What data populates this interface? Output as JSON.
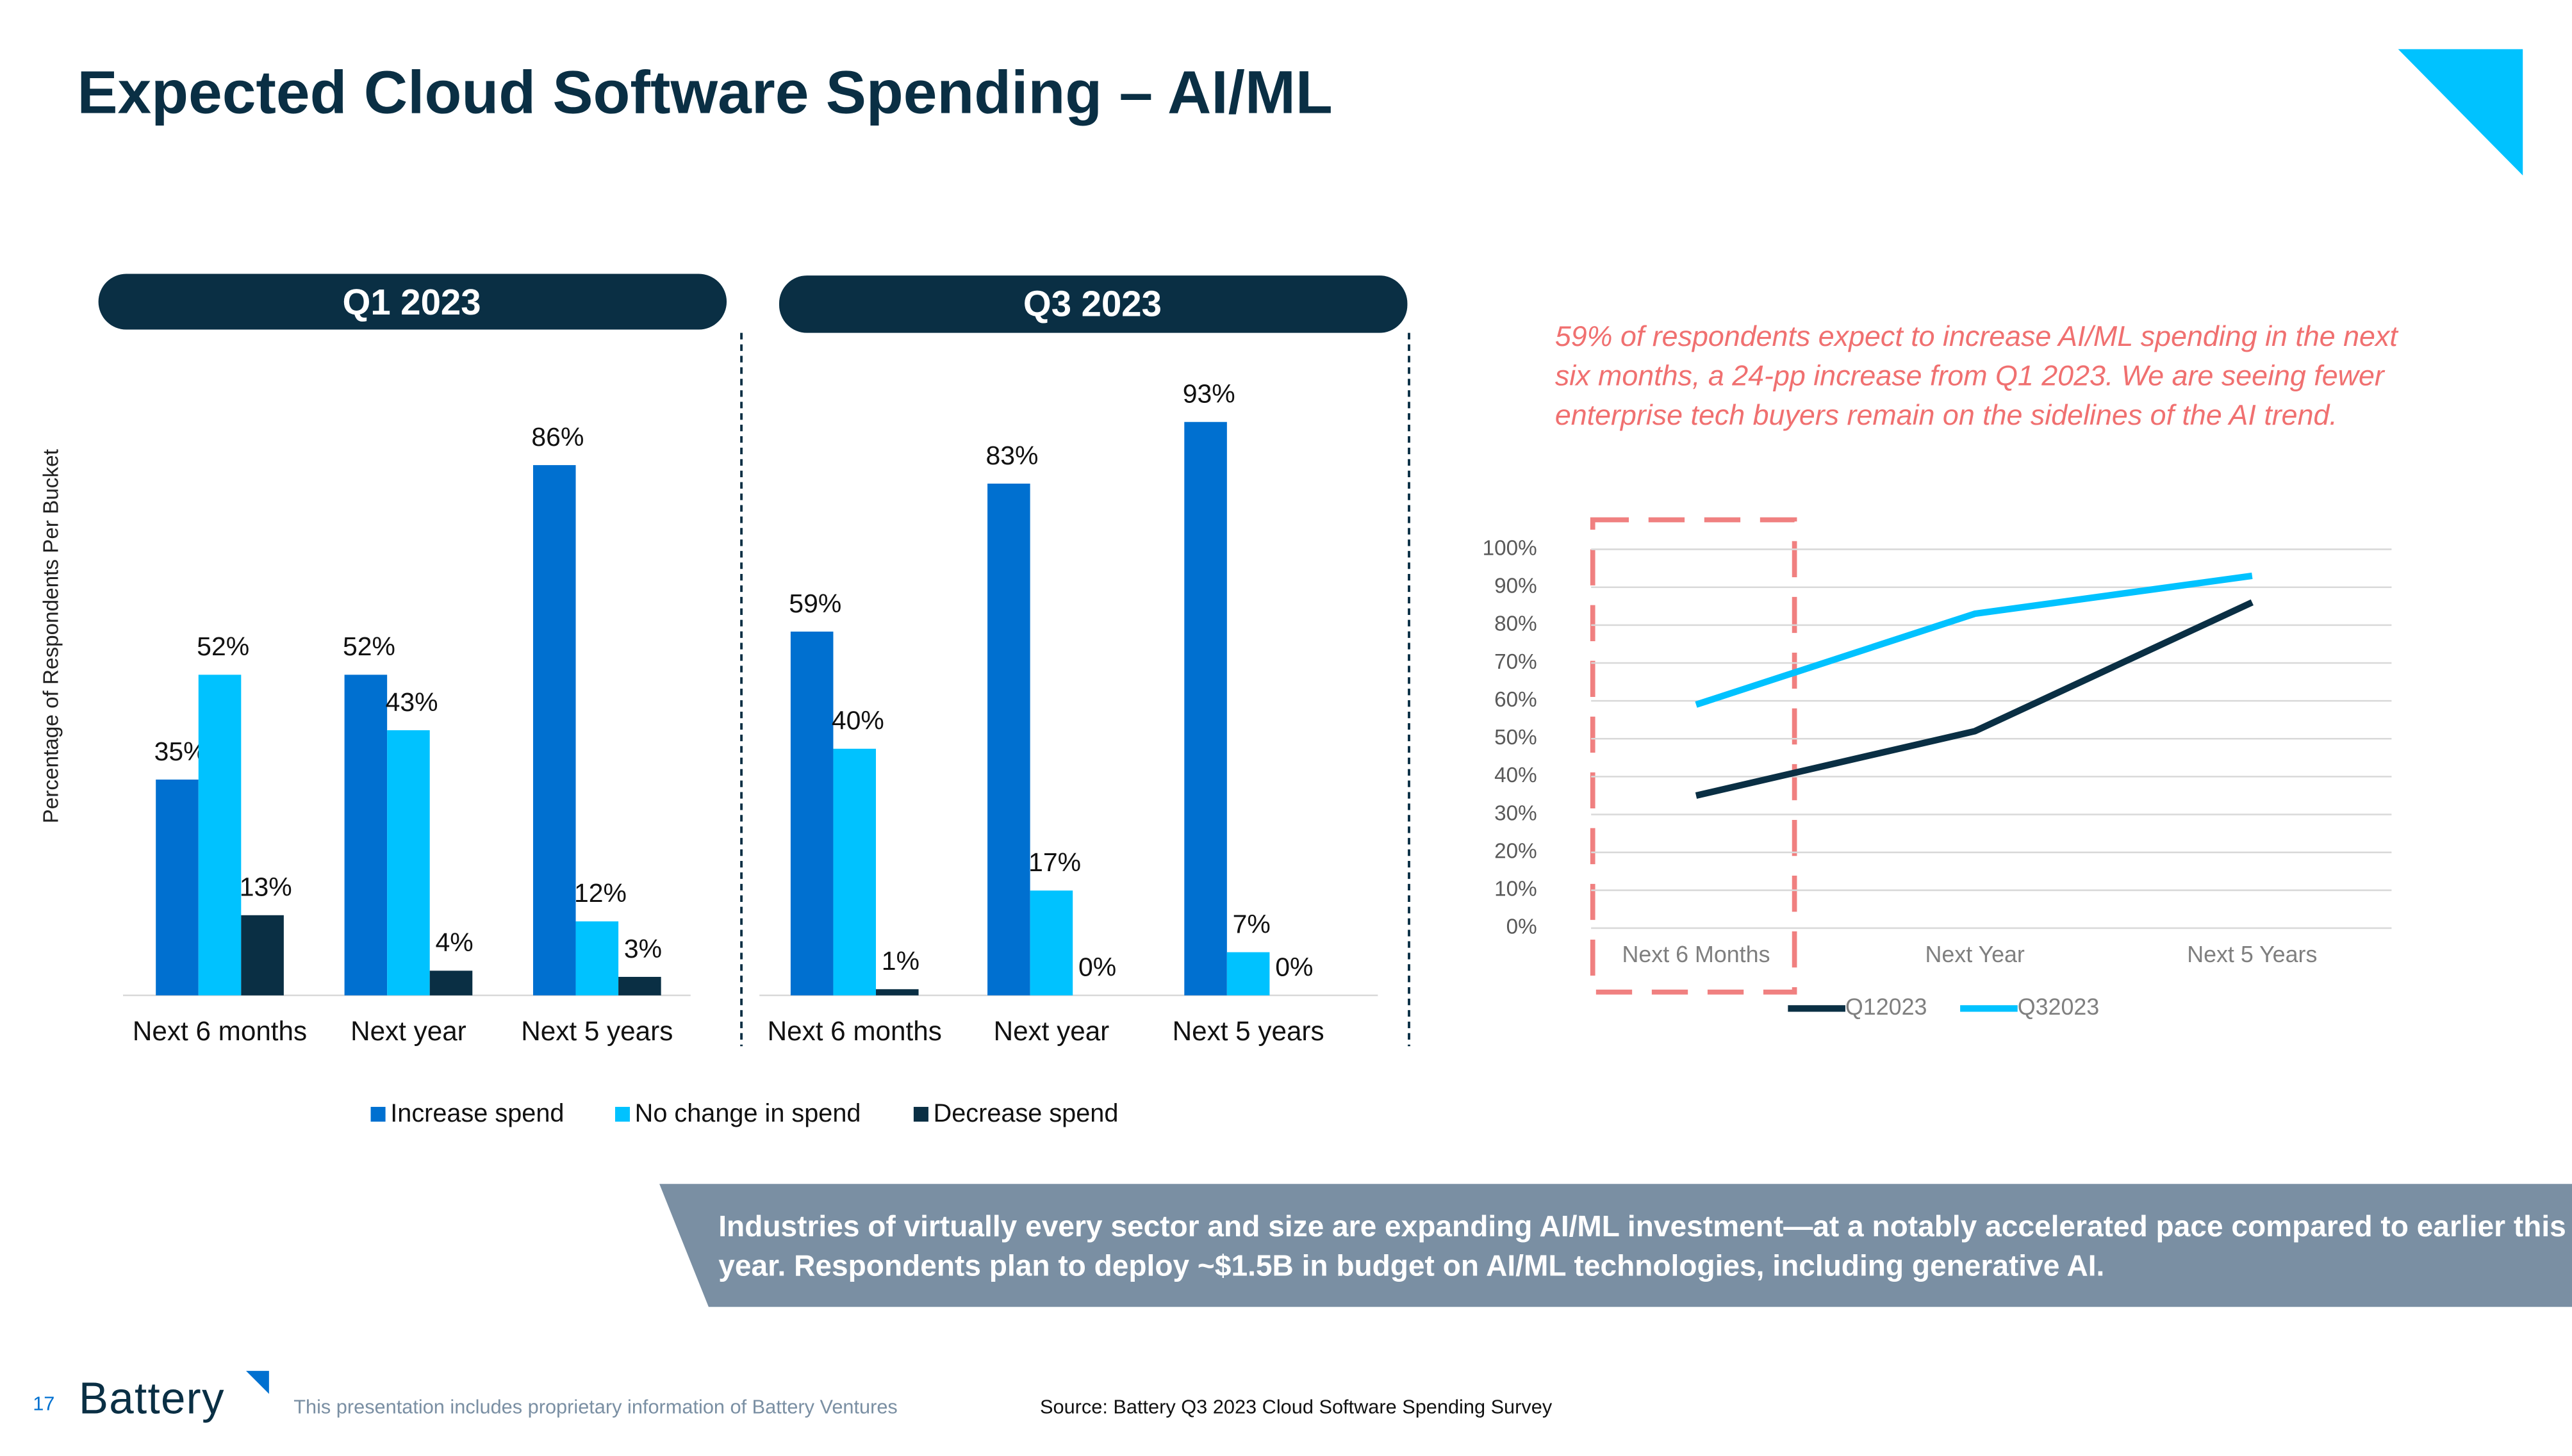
{
  "title": "Expected Cloud Software Spending – AI/ML",
  "annotation": "59% of respondents expect to increase AI/ML spending in the next six months, a 24-pp increase from Q1 2023. We are seeing fewer enterprise tech buyers remain on the sidelines of the AI trend.",
  "banner": "Industries of virtually every sector and size are expanding AI/ML investment—at a notably accelerated pace compared to earlier this year. Respondents plan to deploy ~$1.5B in budget on AI/ML technologies, including generative AI.",
  "footer": {
    "page": "17",
    "logo": "Battery",
    "disclaimer": "This presentation includes proprietary information of Battery Ventures",
    "source": "Source: Battery Q3 2023 Cloud Software Spending Survey"
  },
  "chart_data": [
    {
      "type": "bar",
      "title": "Q1 2023",
      "y_label": "Percentage of Respondents Per Bucket",
      "categories": [
        "Next 6 months",
        "Next year",
        "Next 5 years"
      ],
      "ylim": [
        0,
        100
      ],
      "series": [
        {
          "name": "Increase spend",
          "color": "#0070d0",
          "values": [
            35,
            52,
            86
          ],
          "value_labels": [
            "35%",
            "52%",
            "86%"
          ]
        },
        {
          "name": "No change in spend",
          "color": "#00c2ff",
          "values": [
            52,
            43,
            12
          ],
          "value_labels": [
            "52%",
            "43%",
            "12%"
          ]
        },
        {
          "name": "Decrease spend",
          "color": "#0a2f44",
          "values": [
            13,
            4,
            3
          ],
          "value_labels": [
            "13%",
            "4%",
            "3%"
          ]
        }
      ]
    },
    {
      "type": "bar",
      "title": "Q3 2023",
      "categories": [
        "Next 6 months",
        "Next year",
        "Next 5 years"
      ],
      "ylim": [
        0,
        100
      ],
      "series": [
        {
          "name": "Increase spend",
          "color": "#0070d0",
          "values": [
            59,
            83,
            93
          ],
          "value_labels": [
            "59%",
            "83%",
            "93%"
          ]
        },
        {
          "name": "No change in spend",
          "color": "#00c2ff",
          "values": [
            40,
            17,
            7
          ],
          "value_labels": [
            "40%",
            "17%",
            "7%"
          ]
        },
        {
          "name": "Decrease spend",
          "color": "#0a2f44",
          "values": [
            1,
            0,
            0
          ],
          "value_labels": [
            "1%",
            "0%",
            "0%"
          ]
        }
      ]
    },
    {
      "type": "line",
      "categories": [
        "Next 6 Months",
        "Next Year",
        "Next 5 Years"
      ],
      "ylim": [
        0,
        100
      ],
      "grid": true,
      "yticks": [
        {
          "value": 0,
          "label": "0%"
        },
        {
          "value": 10,
          "label": "10%"
        },
        {
          "value": 20,
          "label": "20%"
        },
        {
          "value": 30,
          "label": "30%"
        },
        {
          "value": 40,
          "label": "40%"
        },
        {
          "value": 50,
          "label": "50%"
        },
        {
          "value": 60,
          "label": "60%"
        },
        {
          "value": 70,
          "label": "70%"
        },
        {
          "value": 80,
          "label": "80%"
        },
        {
          "value": 90,
          "label": "90%"
        },
        {
          "value": 100,
          "label": "100%"
        }
      ],
      "series": [
        {
          "name": "Q12023",
          "color": "#0a2f44",
          "values": [
            35,
            52,
            86
          ]
        },
        {
          "name": "Q32023",
          "color": "#00c2ff",
          "values": [
            59,
            83,
            93
          ]
        }
      ]
    }
  ]
}
